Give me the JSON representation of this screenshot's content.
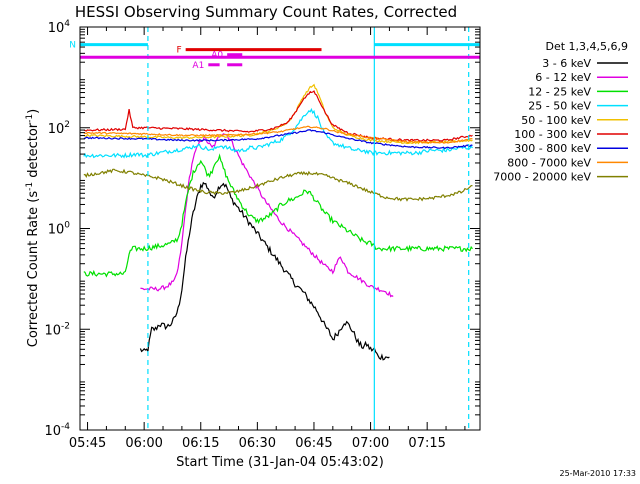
{
  "footer": {
    "stamp": "25-Mar-2010 17:33"
  },
  "chart_data": {
    "type": "line",
    "title": "HESSI Observing Summary Count Rates, Corrected",
    "xlabel": "Start Time (31-Jan-04 05:43:02)",
    "ylabel_main": "Corrected Count Rate (s",
    "ylabel_sup1": "-1",
    "ylabel_mid": " detector",
    "ylabel_sup2": "-1",
    "ylabel_end": ")",
    "x_ticks": [
      "05:45",
      "06:00",
      "06:15",
      "06:30",
      "06:45",
      "07:00",
      "07:15"
    ],
    "x_tick_minutes": [
      45,
      60,
      75,
      90,
      105,
      120,
      135
    ],
    "xlim_minutes": [
      43,
      149
    ],
    "ylim_log10": [
      -4,
      4
    ],
    "y_ticks": [
      {
        "base": "10",
        "exp": "-4",
        "log": -4
      },
      {
        "base": "10",
        "exp": "-2",
        "log": -2
      },
      {
        "base": "10",
        "exp": "0",
        "log": 0
      },
      {
        "base": "10",
        "exp": "2",
        "log": 2
      },
      {
        "base": "10",
        "exp": "4",
        "log": 4
      }
    ],
    "scale": "log",
    "legend": {
      "header": "Det 1,3,4,5,6,9",
      "position": "right",
      "entries": [
        {
          "label": "3 - 6 keV",
          "color": "#000000"
        },
        {
          "label": "6 - 12 keV",
          "color": "#e000e0"
        },
        {
          "label": "12 - 25 keV",
          "color": "#00e000"
        },
        {
          "label": "25 - 50 keV",
          "color": "#00e0ff"
        },
        {
          "label": "50 - 100 keV",
          "color": "#f0c000"
        },
        {
          "label": "100 - 300 keV",
          "color": "#e00000"
        },
        {
          "label": "300 - 800 keV",
          "color": "#0000e0"
        },
        {
          "label": "800 - 7000 keV",
          "color": "#ff8800"
        },
        {
          "label": "7000 - 20000 keV",
          "color": "#808000"
        }
      ]
    },
    "flag_bars": [
      {
        "label": "N",
        "color": "#00e0ff",
        "segments": [
          [
            43,
            61
          ],
          [
            121,
            149
          ]
        ],
        "level": 3.65
      },
      {
        "label": "F",
        "color": "#e00000",
        "segments": [
          [
            71,
            107
          ]
        ],
        "level": 3.55
      },
      {
        "label": "A0",
        "color": "#e000e0",
        "segments": [
          [
            82,
            86
          ]
        ],
        "level": 3.45
      },
      {
        "label": "",
        "color": "#e000e0",
        "segments": [
          [
            43,
            149
          ]
        ],
        "level": 3.4
      },
      {
        "label": "A1",
        "color": "#e000e0",
        "segments": [
          [
            77,
            80
          ],
          [
            82,
            86
          ]
        ],
        "level": 3.25
      }
    ],
    "vlines": [
      {
        "x": 61,
        "style": "dashed",
        "color": "#00e0ff"
      },
      {
        "x": 121,
        "style": "solid",
        "color": "#00e0ff"
      },
      {
        "x": 146,
        "style": "dashed",
        "color": "#00e0ff"
      }
    ],
    "series": [
      {
        "name": "3 - 6 keV",
        "color": "#000000",
        "noise": 0.06,
        "x": [
          59,
          60,
          61,
          62,
          63,
          64,
          66,
          67,
          68,
          69,
          70,
          71,
          72,
          73,
          74,
          75,
          76,
          77,
          78,
          79,
          80,
          81,
          82,
          83,
          84,
          86,
          88,
          90,
          92,
          94,
          96,
          98,
          100,
          102,
          104,
          106,
          107,
          108,
          109,
          110,
          111,
          112,
          113,
          114,
          115,
          116,
          117,
          118,
          119,
          120,
          121,
          122,
          123,
          124,
          125
        ],
        "y": [
          -2.4,
          -2.45,
          -2.4,
          -2.0,
          -2.0,
          -1.9,
          -1.95,
          -1.9,
          -1.8,
          -1.6,
          -1.2,
          -0.6,
          -0.1,
          0.3,
          0.6,
          0.85,
          0.9,
          0.8,
          0.6,
          0.7,
          0.85,
          0.9,
          0.8,
          0.6,
          0.5,
          0.3,
          0.1,
          -0.1,
          -0.3,
          -0.5,
          -0.7,
          -0.9,
          -1.1,
          -1.25,
          -1.45,
          -1.65,
          -1.8,
          -1.95,
          -2.05,
          -2.2,
          -2.1,
          -2.0,
          -1.85,
          -1.9,
          -2.0,
          -2.15,
          -2.3,
          -2.35,
          -2.3,
          -2.4,
          -2.4,
          -2.55,
          -2.55,
          -2.55,
          -2.55
        ]
      },
      {
        "name": "6 - 12 keV",
        "color": "#e000e0",
        "noise": 0.04,
        "x": [
          59,
          61,
          64,
          66,
          68,
          69,
          70,
          71,
          72,
          73,
          74,
          75,
          76,
          77,
          78,
          79,
          80,
          81,
          82,
          83,
          84,
          86,
          88,
          90,
          92,
          94,
          96,
          98,
          100,
          102,
          104,
          106,
          108,
          110,
          111,
          112,
          113,
          114,
          116,
          118,
          120,
          122,
          124,
          125,
          126
        ],
        "y": [
          -1.2,
          -1.2,
          -1.2,
          -1.15,
          -1.05,
          -0.8,
          -0.3,
          0.4,
          1.0,
          1.4,
          1.6,
          1.75,
          1.8,
          1.7,
          1.6,
          1.7,
          1.85,
          1.9,
          1.85,
          1.75,
          1.6,
          1.3,
          1.05,
          0.8,
          0.55,
          0.35,
          0.15,
          0.0,
          -0.15,
          -0.3,
          -0.45,
          -0.6,
          -0.75,
          -0.85,
          -0.7,
          -0.55,
          -0.7,
          -0.85,
          -0.95,
          -1.05,
          -1.15,
          -1.2,
          -1.25,
          -1.3,
          -1.35
        ]
      },
      {
        "name": "12 - 25 keV",
        "color": "#00e000",
        "noise": 0.05,
        "x": [
          44,
          50,
          55,
          56,
          57,
          60,
          64,
          67,
          69,
          70,
          71,
          72,
          73,
          74,
          75,
          76,
          77,
          78,
          79,
          80,
          81,
          82,
          84,
          86,
          88,
          90,
          92,
          94,
          96,
          98,
          100,
          102,
          103,
          104,
          105,
          106,
          108,
          110,
          112,
          114,
          116,
          118,
          120,
          122,
          124,
          126,
          128,
          130,
          132,
          134,
          136,
          138,
          140,
          142,
          144,
          146,
          147
        ],
        "y": [
          -0.9,
          -0.9,
          -0.9,
          -0.5,
          -0.4,
          -0.4,
          -0.35,
          -0.3,
          -0.2,
          0.1,
          0.5,
          0.85,
          1.1,
          1.25,
          1.35,
          1.2,
          1.05,
          1.15,
          1.35,
          1.4,
          1.2,
          1.0,
          0.7,
          0.45,
          0.25,
          0.15,
          0.2,
          0.3,
          0.45,
          0.55,
          0.6,
          0.7,
          0.75,
          0.7,
          0.6,
          0.5,
          0.3,
          0.15,
          0.05,
          -0.05,
          -0.15,
          -0.25,
          -0.3,
          -0.4,
          -0.4,
          -0.4,
          -0.4,
          -0.4,
          -0.4,
          -0.4,
          -0.4,
          -0.4,
          -0.4,
          -0.4,
          -0.4,
          -0.4,
          -0.4
        ]
      },
      {
        "name": "25 - 50 keV",
        "color": "#00e0ff",
        "noise": 0.04,
        "x": [
          44,
          50,
          55,
          58,
          60,
          64,
          68,
          72,
          74,
          76,
          78,
          80,
          82,
          84,
          86,
          88,
          90,
          92,
          94,
          96,
          98,
          100,
          102,
          103,
          104,
          105,
          106,
          107,
          108,
          110,
          112,
          114,
          116,
          118,
          120,
          124,
          128,
          132,
          136,
          140,
          144,
          147
        ],
        "y": [
          1.45,
          1.45,
          1.45,
          1.48,
          1.45,
          1.5,
          1.55,
          1.6,
          1.65,
          1.6,
          1.55,
          1.65,
          1.6,
          1.55,
          1.55,
          1.6,
          1.6,
          1.65,
          1.7,
          1.75,
          1.85,
          2.0,
          2.2,
          2.3,
          2.35,
          2.3,
          2.2,
          2.0,
          1.85,
          1.7,
          1.65,
          1.6,
          1.55,
          1.55,
          1.5,
          1.5,
          1.5,
          1.5,
          1.55,
          1.55,
          1.6,
          1.6
        ]
      },
      {
        "name": "50 - 100 keV",
        "color": "#f0c000",
        "noise": 0.02,
        "x": [
          44,
          60,
          70,
          80,
          88,
          94,
          98,
          100,
          102,
          104,
          105,
          106,
          108,
          110,
          114,
          120,
          130,
          140,
          147
        ],
        "y": [
          1.85,
          1.82,
          1.8,
          1.82,
          1.85,
          1.95,
          2.1,
          2.3,
          2.6,
          2.8,
          2.85,
          2.7,
          2.3,
          2.0,
          1.85,
          1.75,
          1.7,
          1.72,
          1.75
        ]
      },
      {
        "name": "100 - 300 keV",
        "color": "#e00000",
        "noise": 0.02,
        "x": [
          44,
          55,
          56,
          57,
          60,
          70,
          80,
          88,
          94,
          98,
          100,
          102,
          104,
          105,
          106,
          108,
          110,
          114,
          120,
          130,
          140,
          147
        ],
        "y": [
          1.95,
          1.97,
          2.35,
          2.0,
          2.0,
          1.98,
          1.95,
          1.92,
          1.98,
          2.1,
          2.3,
          2.55,
          2.7,
          2.72,
          2.6,
          2.3,
          2.05,
          1.9,
          1.8,
          1.75,
          1.75,
          1.85
        ]
      },
      {
        "name": "300 - 800 keV",
        "color": "#0000e0",
        "noise": 0.015,
        "x": [
          44,
          60,
          70,
          80,
          90,
          96,
          100,
          104,
          108,
          112,
          120,
          130,
          140,
          147
        ],
        "y": [
          1.8,
          1.78,
          1.75,
          1.75,
          1.78,
          1.85,
          1.9,
          1.95,
          1.9,
          1.82,
          1.7,
          1.62,
          1.6,
          1.65
        ]
      },
      {
        "name": "800 - 7000 keV",
        "color": "#ff8800",
        "noise": 0.015,
        "x": [
          44,
          60,
          70,
          80,
          90,
          96,
          100,
          104,
          108,
          112,
          120,
          130,
          140,
          147
        ],
        "y": [
          1.9,
          1.88,
          1.85,
          1.85,
          1.88,
          1.92,
          1.98,
          2.02,
          1.98,
          1.9,
          1.8,
          1.72,
          1.7,
          1.78
        ]
      },
      {
        "name": "7000 - 20000 keV",
        "color": "#808000",
        "noise": 0.03,
        "x": [
          44,
          48,
          52,
          56,
          60,
          64,
          68,
          72,
          76,
          80,
          84,
          88,
          92,
          96,
          100,
          104,
          108,
          112,
          116,
          120,
          124,
          128,
          132,
          136,
          140,
          144,
          147
        ],
        "y": [
          1.05,
          1.1,
          1.15,
          1.12,
          1.05,
          1.0,
          0.9,
          0.8,
          0.72,
          0.7,
          0.72,
          0.8,
          0.9,
          1.0,
          1.08,
          1.1,
          1.05,
          0.95,
          0.85,
          0.72,
          0.62,
          0.58,
          0.58,
          0.6,
          0.65,
          0.72,
          0.85
        ]
      }
    ]
  }
}
